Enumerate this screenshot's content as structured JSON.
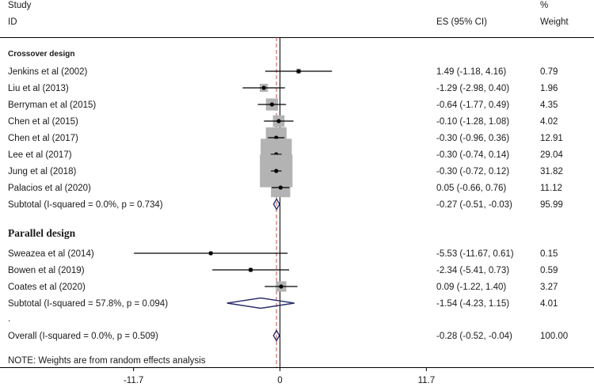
{
  "chart_data": {
    "type": "forest",
    "header": {
      "study_line1": "Study",
      "study_line2": "ID",
      "es_label": "ES (95% CI)",
      "weight_line1": "%",
      "weight_line2": "Weight"
    },
    "groups": [
      {
        "name": "Crossover design",
        "studies": [
          {
            "label": "Jenkins et al (2002)",
            "es": 1.49,
            "lo": -1.18,
            "hi": 4.16,
            "ci_text": "1.49 (-1.18, 4.16)",
            "weight": "0.79"
          },
          {
            "label": "Liu et al (2013)",
            "es": -1.29,
            "lo": -2.98,
            "hi": 0.4,
            "ci_text": "-1.29 (-2.98, 0.40)",
            "weight": "1.96"
          },
          {
            "label": "Berryman et al (2015)",
            "es": -0.64,
            "lo": -1.77,
            "hi": 0.49,
            "ci_text": "-0.64 (-1.77, 0.49)",
            "weight": "4.35"
          },
          {
            "label": "Chen et al (2015)",
            "es": -0.1,
            "lo": -1.28,
            "hi": 1.08,
            "ci_text": "-0.10 (-1.28, 1.08)",
            "weight": "4.02"
          },
          {
            "label": "Chen et al (2017)",
            "es": -0.3,
            "lo": -0.96,
            "hi": 0.36,
            "ci_text": "-0.30 (-0.96, 0.36)",
            "weight": "12.91"
          },
          {
            "label": "Lee et al (2017)",
            "es": -0.3,
            "lo": -0.74,
            "hi": 0.14,
            "ci_text": "-0.30 (-0.74, 0.14)",
            "weight": "29.04"
          },
          {
            "label": "Jung et al (2018)",
            "es": -0.3,
            "lo": -0.72,
            "hi": 0.12,
            "ci_text": "-0.30 (-0.72, 0.12)",
            "weight": "31.82"
          },
          {
            "label": "Palacios et al (2020)",
            "es": 0.05,
            "lo": -0.66,
            "hi": 0.76,
            "ci_text": "0.05 (-0.66, 0.76)",
            "weight": "11.12"
          }
        ],
        "subtotal": {
          "label": "Subtotal  (I-squared = 0.0%, p = 0.734)",
          "es": -0.27,
          "lo": -0.51,
          "hi": -0.03,
          "ci_text": "-0.27 (-0.51, -0.03)",
          "weight": "95.99"
        }
      },
      {
        "name": "Parallel design",
        "studies": [
          {
            "label": "Sweazea et al (2014)",
            "es": -5.53,
            "lo": -11.67,
            "hi": 0.61,
            "ci_text": "-5.53 (-11.67, 0.61)",
            "weight": "0.15"
          },
          {
            "label": "Bowen et al (2019)",
            "es": -2.34,
            "lo": -5.41,
            "hi": 0.73,
            "ci_text": "-2.34 (-5.41, 0.73)",
            "weight": "0.59"
          },
          {
            "label": "Coates et al (2020)",
            "es": 0.09,
            "lo": -1.22,
            "hi": 1.4,
            "ci_text": "0.09 (-1.22, 1.40)",
            "weight": "3.27"
          }
        ],
        "subtotal": {
          "label": "Subtotal  (I-squared = 57.8%, p = 0.094)",
          "es": -1.54,
          "lo": -4.23,
          "hi": 1.15,
          "ci_text": "-1.54 (-4.23, 1.15)",
          "weight": "4.01"
        }
      }
    ],
    "overall": {
      "label": "Overall  (I-squared = 0.0%, p = 0.509)",
      "es": -0.28,
      "lo": -0.52,
      "hi": -0.04,
      "ci_text": "-0.28 (-0.52, -0.04)",
      "weight": "100.00"
    },
    "separator_dot": ".",
    "note": "NOTE: Weights are from random effects analysis",
    "xticks": [
      -11.7,
      0,
      11.7
    ],
    "xtick_labels": [
      "-11.7",
      "0",
      "11.7"
    ],
    "xlim": [
      -11.7,
      11.7
    ],
    "colors": {
      "box": "#b3b3b3",
      "line": "#000000",
      "diamond": "#2b2f6b",
      "ref_dash": "#c0504d"
    }
  }
}
